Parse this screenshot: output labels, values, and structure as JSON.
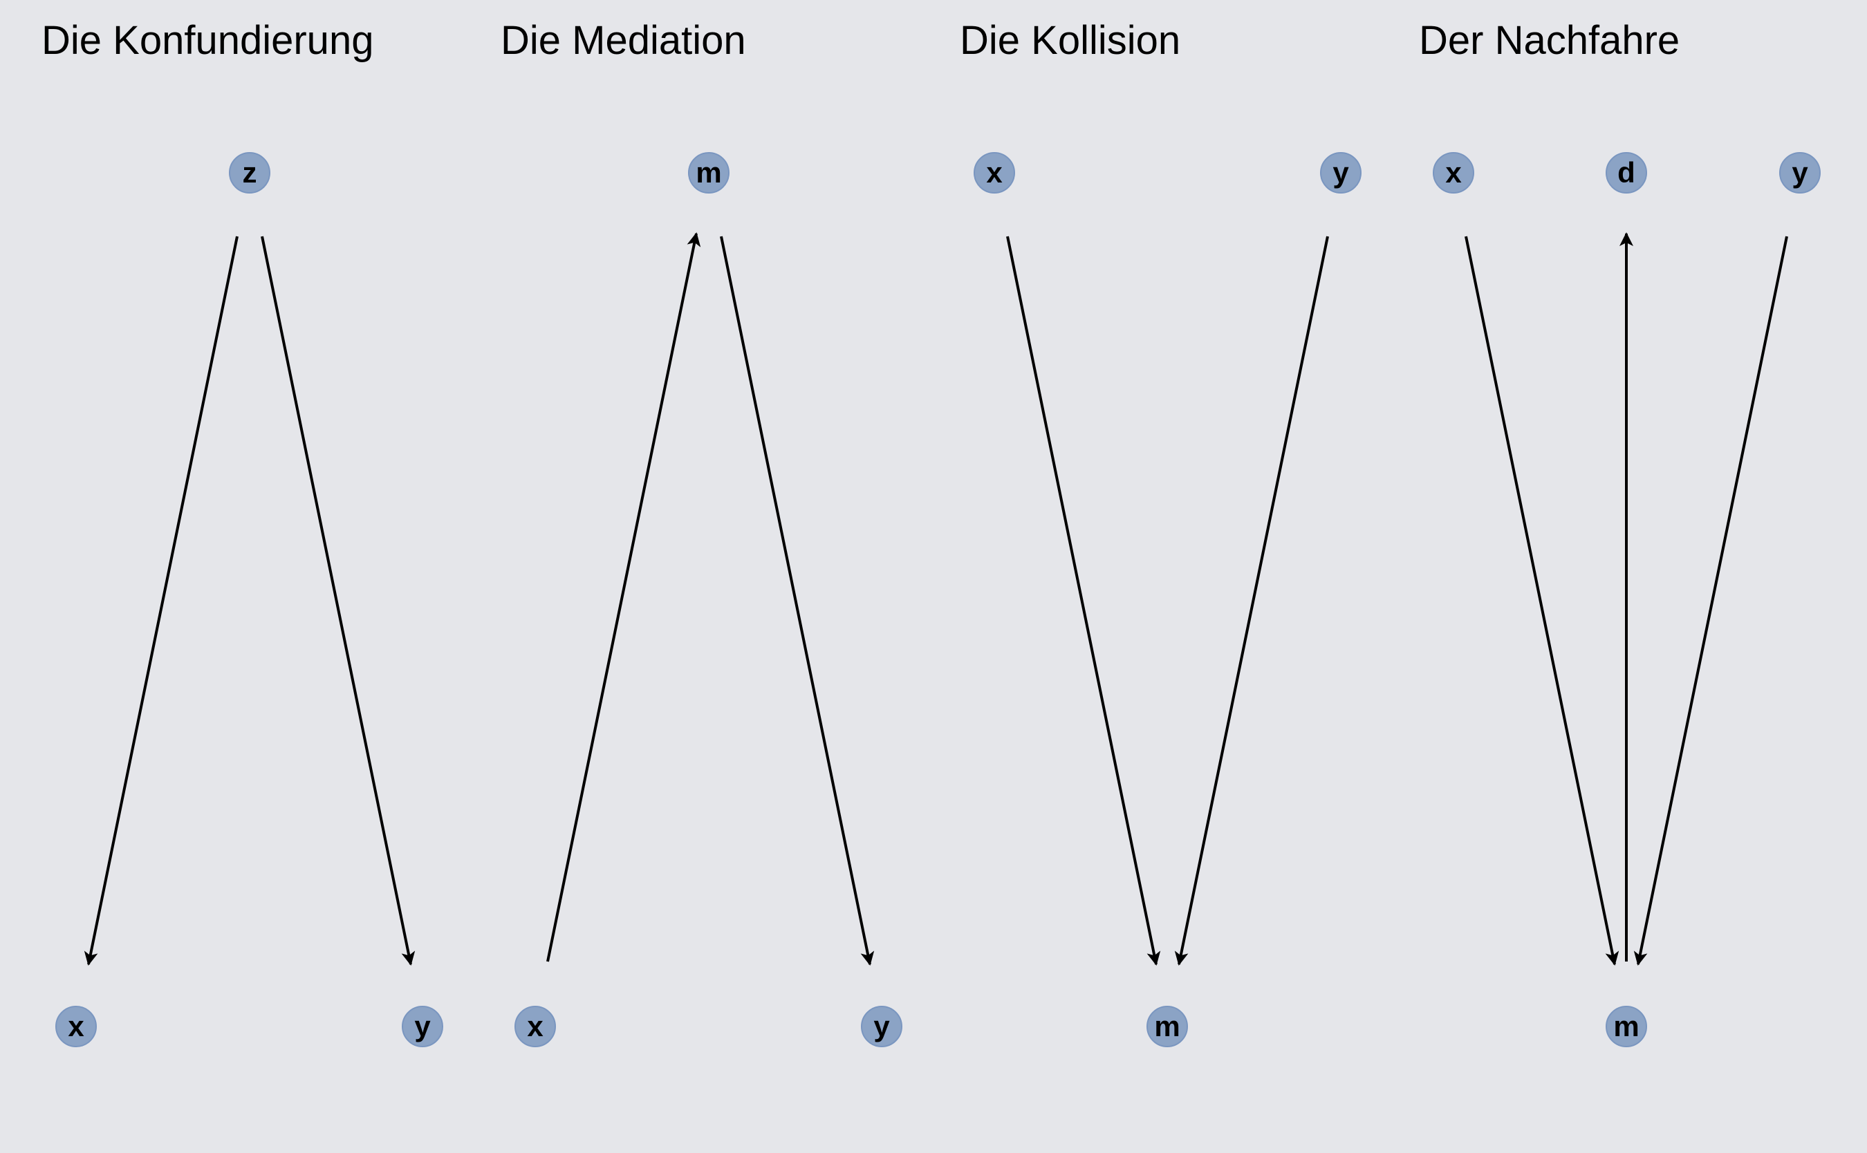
{
  "panels": [
    {
      "title": "Die Konfundierung",
      "nodes": {
        "z": "z",
        "x": "x",
        "y": "y"
      },
      "edges": [
        {
          "from": "z",
          "to": "x"
        },
        {
          "from": "z",
          "to": "y"
        }
      ]
    },
    {
      "title": "Die Mediation",
      "nodes": {
        "m": "m",
        "x": "x",
        "y": "y"
      },
      "edges": [
        {
          "from": "x",
          "to": "m"
        },
        {
          "from": "m",
          "to": "y"
        }
      ]
    },
    {
      "title": "Die Kollision",
      "nodes": {
        "x": "x",
        "y": "y",
        "m": "m"
      },
      "edges": [
        {
          "from": "x",
          "to": "m"
        },
        {
          "from": "y",
          "to": "m"
        }
      ]
    },
    {
      "title": "Der Nachfahre",
      "nodes": {
        "x": "x",
        "d": "d",
        "y": "y",
        "m": "m"
      },
      "edges": [
        {
          "from": "x",
          "to": "m"
        },
        {
          "from": "m",
          "to": "d"
        },
        {
          "from": "y",
          "to": "m"
        }
      ]
    }
  ],
  "colors": {
    "background": "#e5e6ea",
    "node_fill": "#8ba3c5",
    "node_border": "#7a96c0",
    "edge": "#000000"
  }
}
